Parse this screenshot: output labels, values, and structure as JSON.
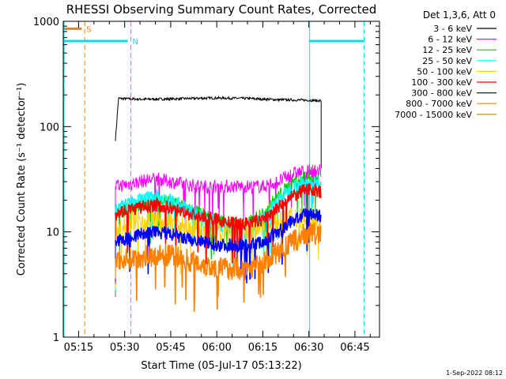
{
  "chart_data": {
    "type": "line",
    "title": "RHESSI Observing Summary Count Rates, Corrected",
    "xlabel": "Start Time (05-Jul-17 05:13:22)",
    "ylabel": "Corrected Count Rate (s⁻¹ detector⁻¹)",
    "y_scale": "log",
    "ylim": [
      1,
      1000
    ],
    "xlim": [
      "05:10",
      "06:53"
    ],
    "x_ticks": [
      "05:15",
      "05:30",
      "05:45",
      "06:00",
      "06:15",
      "06:30",
      "06:45"
    ],
    "y_ticks": [
      "1",
      "10",
      "100",
      "1000"
    ],
    "grid": false,
    "legend_title": "Det 1,3,6, Att 0",
    "legend_position": "right",
    "series": [
      {
        "name": "3 - 6 keV",
        "color": "#000000",
        "x": [
          "05:27",
          "05:28",
          "05:35",
          "05:45",
          "05:55",
          "06:00",
          "06:10",
          "06:20",
          "06:30",
          "06:34"
        ],
        "values": [
          75,
          185,
          182,
          183,
          186,
          187,
          185,
          180,
          178,
          176
        ]
      },
      {
        "name": "6 - 12 keV",
        "color": "#ff00ff",
        "x": [
          "05:27",
          "05:30",
          "05:35",
          "05:40",
          "05:45",
          "05:50",
          "05:55",
          "06:00",
          "06:05",
          "06:10",
          "06:15",
          "06:20",
          "06:25",
          "06:30",
          "06:34"
        ],
        "values": [
          27,
          28,
          30,
          32,
          30,
          28,
          27,
          27,
          27,
          27,
          27,
          30,
          36,
          38,
          38
        ]
      },
      {
        "name": "12 - 25 keV",
        "color": "#00cc00",
        "x": [
          "05:27",
          "05:30",
          "05:35",
          "05:40",
          "05:45",
          "05:50",
          "05:55",
          "06:00",
          "06:05",
          "06:10",
          "06:15",
          "06:20",
          "06:25",
          "06:30",
          "06:34"
        ],
        "values": [
          14,
          16,
          18,
          20,
          19,
          17,
          15,
          13,
          12,
          12,
          15,
          22,
          30,
          33,
          30
        ]
      },
      {
        "name": "25 - 50 keV",
        "color": "#00ffff",
        "x": [
          "05:27",
          "05:30",
          "05:35",
          "05:40",
          "05:45",
          "05:50",
          "05:55",
          "06:00",
          "06:05",
          "06:10",
          "06:15",
          "06:20",
          "06:25",
          "06:30",
          "06:34"
        ],
        "values": [
          16,
          18,
          20,
          22,
          20,
          17,
          14,
          12,
          11,
          11,
          13,
          20,
          27,
          30,
          28
        ]
      },
      {
        "name": "50 - 100 keV",
        "color": "#ffd000",
        "x": [
          "05:27",
          "05:30",
          "05:35",
          "05:45",
          "05:55",
          "06:05",
          "06:15",
          "06:25",
          "06:34"
        ],
        "values": [
          10,
          12,
          13,
          12,
          11,
          10,
          11,
          14,
          13
        ]
      },
      {
        "name": "100 - 300 keV",
        "color": "#ff0000",
        "x": [
          "05:27",
          "05:30",
          "05:35",
          "05:40",
          "05:45",
          "05:50",
          "05:55",
          "06:00",
          "06:05",
          "06:10",
          "06:15",
          "06:20",
          "06:25",
          "06:30",
          "06:34"
        ],
        "values": [
          15,
          16,
          17,
          18,
          17,
          15,
          14,
          13,
          12,
          12,
          13,
          17,
          22,
          26,
          24
        ]
      },
      {
        "name": "300 - 800 keV",
        "color": "#0000ff",
        "x": [
          "05:27",
          "05:30",
          "05:35",
          "05:40",
          "05:45",
          "05:50",
          "05:55",
          "06:00",
          "06:05",
          "06:10",
          "06:15",
          "06:20",
          "06:25",
          "06:30",
          "06:34"
        ],
        "values": [
          8,
          8.5,
          9.5,
          10,
          9.5,
          8.5,
          8,
          7.5,
          7.5,
          7.5,
          8,
          10,
          13,
          15,
          14
        ]
      },
      {
        "name": "800 - 7000 keV",
        "color": "#ff8000",
        "x": [
          "05:27",
          "05:30",
          "05:35",
          "05:40",
          "05:45",
          "05:50",
          "05:55",
          "06:00",
          "06:05",
          "06:10",
          "06:15",
          "06:20",
          "06:25",
          "06:30",
          "06:34"
        ],
        "values": [
          5.5,
          5.5,
          5.8,
          6,
          6,
          5.5,
          5,
          4.5,
          4.5,
          4.5,
          5,
          6.5,
          8,
          10,
          9
        ]
      },
      {
        "name": "7000 - 15000 keV",
        "color": "#aa8800",
        "x": [],
        "values": []
      }
    ],
    "markers": [
      {
        "label": "S",
        "color": "#ff8000",
        "bar_from": "05:10",
        "bar_to": "05:16",
        "dashed_at": "05:17",
        "level": 850
      },
      {
        "label": "N",
        "color": "#00e0e0",
        "bar_from": "05:10",
        "bar_to": "05:31",
        "dashed_at": "05:32",
        "level": 650
      },
      {
        "label": "",
        "color": "#00e0e0",
        "bar_from": "06:30",
        "bar_to": "06:48",
        "dashed_at": "06:48",
        "level": 650
      }
    ],
    "solid_vlines": [
      {
        "x": "05:10",
        "color": "#00e0e0"
      },
      {
        "x": "06:30",
        "color": "#00e0e0"
      }
    ]
  },
  "footer": {
    "timestamp": "1-Sep-2022 08:12"
  }
}
